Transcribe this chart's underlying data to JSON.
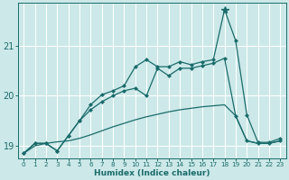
{
  "xlabel": "Humidex (Indice chaleur)",
  "bg_color": "#cce8e8",
  "grid_color": "#ffffff",
  "line_color": "#1a6b6b",
  "xlim": [
    -0.5,
    23.5
  ],
  "ylim": [
    18.75,
    21.85
  ],
  "yticks": [
    19,
    20,
    21
  ],
  "xticks": [
    0,
    1,
    2,
    3,
    4,
    5,
    6,
    7,
    8,
    9,
    10,
    11,
    12,
    13,
    14,
    15,
    16,
    17,
    18,
    19,
    20,
    21,
    22,
    23
  ],
  "series1_x": [
    0,
    1,
    2,
    3,
    4,
    5,
    6,
    7,
    8,
    9,
    10,
    11,
    12,
    13,
    14,
    15,
    16,
    17,
    18,
    19,
    20,
    21,
    22,
    23
  ],
  "series1_y": [
    18.85,
    19.0,
    19.05,
    19.08,
    19.1,
    19.15,
    19.22,
    19.3,
    19.38,
    19.45,
    19.52,
    19.58,
    19.63,
    19.68,
    19.72,
    19.75,
    19.78,
    19.8,
    19.82,
    19.6,
    19.1,
    19.05,
    19.05,
    19.1
  ],
  "series2_marker_x": [
    0,
    1,
    2,
    3,
    4,
    5,
    6,
    7,
    8,
    9,
    10,
    11,
    12,
    13,
    14,
    15,
    16,
    17,
    18,
    19,
    20,
    21,
    22,
    23
  ],
  "series2_marker_y": [
    18.85,
    19.05,
    19.05,
    18.9,
    19.2,
    19.5,
    19.72,
    19.88,
    20.0,
    20.1,
    20.15,
    20.0,
    20.55,
    20.4,
    20.55,
    20.55,
    20.6,
    20.65,
    20.75,
    19.6,
    19.1,
    19.05,
    19.05,
    19.1
  ],
  "series3_x": [
    0,
    1,
    2,
    3,
    4,
    5,
    6,
    7,
    8,
    9,
    10,
    11,
    12,
    13,
    14,
    15,
    16,
    17,
    18,
    19,
    20,
    21,
    22,
    23
  ],
  "series3_y": [
    18.85,
    19.05,
    19.05,
    18.9,
    19.2,
    19.5,
    19.82,
    20.02,
    20.1,
    20.2,
    20.58,
    20.72,
    20.58,
    20.58,
    20.68,
    20.62,
    20.68,
    20.72,
    21.72,
    21.1,
    19.62,
    19.07,
    19.07,
    19.15
  ],
  "peak_x": 18,
  "peak_y": 21.72
}
